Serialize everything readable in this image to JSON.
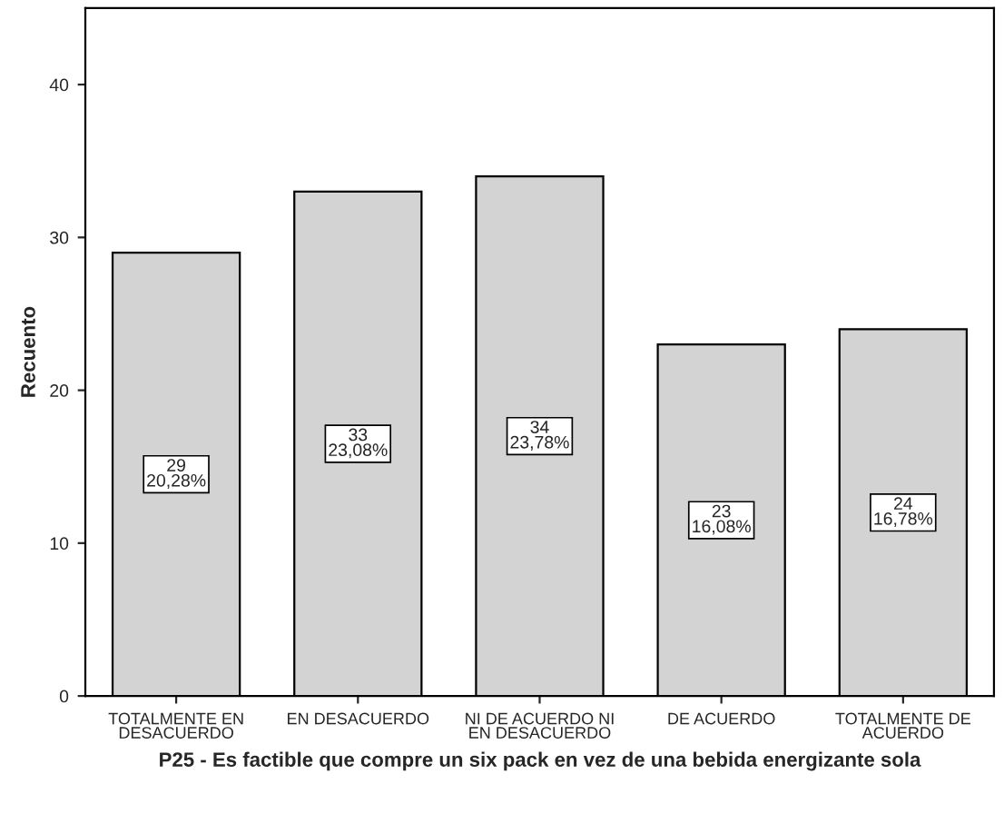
{
  "chart_data": {
    "type": "bar",
    "xlabel": "P25 - Es factible que compre un six pack en vez de una bebida energizante sola",
    "ylabel": "Recuento",
    "categories": [
      "TOTALMENTE EN\nDESACUERDO",
      "EN DESACUERDO",
      "NI DE ACUERDO NI\nEN DESACUERDO",
      "DE ACUERDO",
      "TOTALMENTE DE\nACUERDO"
    ],
    "values": [
      29,
      33,
      34,
      23,
      24
    ],
    "value_labels": [
      "29\n20,28%",
      "33\n23,08%",
      "34\n23,78%",
      "23\n16,08%",
      "24\n16,78%"
    ],
    "color": "#d3d3d3",
    "ylim": [
      0,
      45
    ],
    "yticks": [
      0,
      10,
      20,
      30,
      40
    ],
    "grid": false,
    "legend": false
  }
}
